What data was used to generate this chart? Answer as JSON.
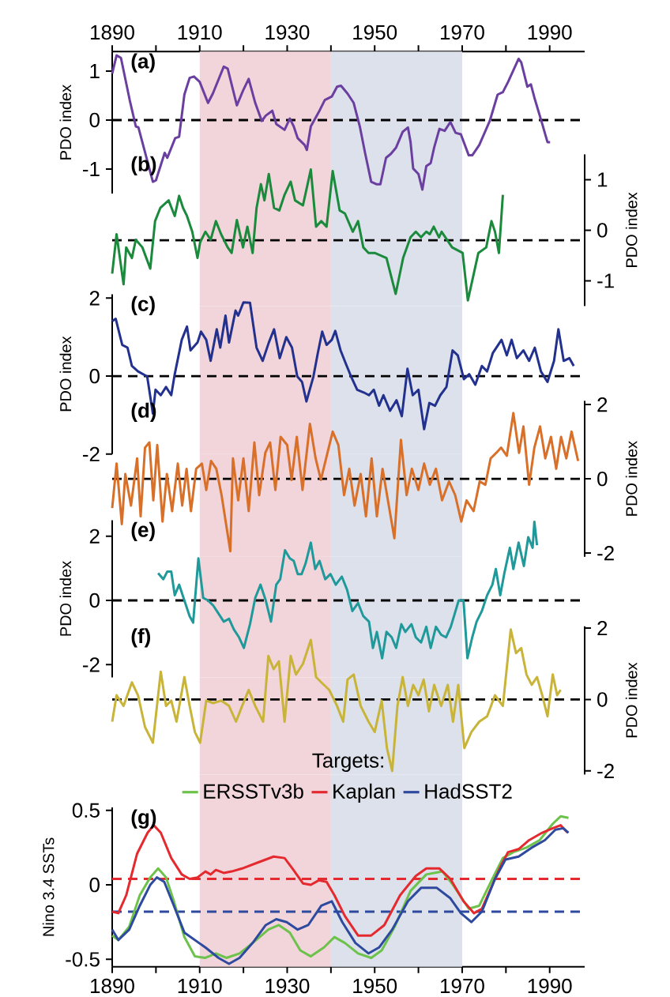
{
  "chart_data": [
    {
      "type": "line",
      "xlim": [
        1890,
        1998
      ],
      "ylim": [
        -1.5,
        1.4
      ],
      "ylabel": "PDO index",
      "annotations": [
        "(a)"
      ],
      "xticks": [
        1890,
        {
          "value": 1900,
          "label": null
        },
        1910,
        {
          "value": 1920,
          "label": null
        },
        1930,
        {
          "value": 1940,
          "label": null
        },
        1950,
        {
          "value": 1960,
          "label": null
        },
        1970,
        {
          "value": 1980,
          "label": null
        },
        1990
      ],
      "yticks": [
        -1,
        0,
        1
      ],
      "ref_lines": [
        {
          "axis": "y",
          "value": 0,
          "line_style": "dashed",
          "color": "#000000"
        }
      ],
      "bands": [
        {
          "axis": "x",
          "from": 1910,
          "to": 1940,
          "color": "#f1d5db"
        },
        {
          "axis": "x",
          "from": 1940,
          "to": 1970,
          "color": "#dde1eb"
        }
      ],
      "series": [
        {
          "color": "#6b3fa0",
          "x": [
            1890,
            1891,
            1892,
            1894,
            1895.4,
            1896,
            1899.3,
            1900,
            1902,
            1902.6,
            1904.4,
            1905.3,
            1906.5,
            1907.7,
            1908.7,
            1910,
            1911.9,
            1913,
            1915.5,
            1916.4,
            1918.5,
            1920,
            1921.2,
            1922.7,
            1924.2,
            1925.1,
            1926.6,
            1927.5,
            1929.4,
            1930.6,
            1931.5,
            1932.4,
            1934,
            1934.5,
            1935.4,
            1937.2,
            1938.6,
            1940.2,
            1941.4,
            1942.3,
            1943.8,
            1945.2,
            1946.6,
            1947.8,
            1949.2,
            1950.4,
            1951.3,
            1952.6,
            1953.7,
            1954.9,
            1956.4,
            1957.6,
            1958.2,
            1958.8,
            1960,
            1960.9,
            1961.8,
            1962.8,
            1963.6,
            1964.8,
            1966,
            1967.3,
            1968.5,
            1969.7,
            1971.5,
            1972.3,
            1973.9,
            1976.3,
            1978.1,
            1979.3,
            1980.5,
            1982.9,
            1983.5,
            1984.9,
            1985.7,
            1986.5,
            1988.3,
            1989.5,
            1990.1
          ],
          "values": [
            0.95,
            1.32,
            1.27,
            0.41,
            -0.13,
            -0.15,
            -1.26,
            -1.23,
            -0.67,
            -0.77,
            -0.37,
            -0.34,
            0.52,
            0.86,
            0.89,
            0.78,
            0.35,
            0.54,
            1.09,
            1.05,
            0.3,
            0.62,
            0.84,
            0.35,
            -0.02,
            0.09,
            0.19,
            -0.08,
            -0.2,
            0.03,
            -0.13,
            -0.37,
            -0.51,
            -0.61,
            -0.13,
            0.16,
            0.41,
            0.48,
            0.68,
            0.7,
            0.54,
            0.35,
            -0.13,
            -0.67,
            -1.26,
            -1.31,
            -1.31,
            -0.77,
            -0.69,
            -0.56,
            -0.24,
            -0.15,
            -0.45,
            -0.99,
            -1.1,
            -1.42,
            -0.94,
            -0.88,
            -0.56,
            -0.18,
            -0.22,
            -0.04,
            -0.26,
            -0.29,
            -0.72,
            -0.72,
            -0.51,
            -0.02,
            0.52,
            0.57,
            0.78,
            1.25,
            1.18,
            0.68,
            0.73,
            0.46,
            -0.08,
            -0.45,
            -0.45
          ]
        }
      ]
    },
    {
      "type": "line",
      "xlim": [
        1890,
        1998
      ],
      "y2lim": [
        -1.5,
        1.5
      ],
      "y2label": "PDO index",
      "annotations": [
        "(b)"
      ],
      "tick_labels": "y",
      "y2ticks": [
        -1,
        0,
        1
      ],
      "ref_lines": [
        {
          "axis": "y2",
          "value": -0.2,
          "line_style": "dashed",
          "color": "#000000"
        }
      ],
      "bands": [
        {
          "axis": "x",
          "from": 1910,
          "to": 1940,
          "color": "#f1d5db"
        },
        {
          "axis": "x",
          "from": 1940,
          "to": 1970,
          "color": "#dde1eb"
        }
      ],
      "series": [
        {
          "color": "#1b8a3c",
          "axis": "y2",
          "x": [
            1890,
            1891,
            1892.6,
            1893.2,
            1894.5,
            1895.4,
            1896.9,
            1898.7,
            1899.8,
            1901,
            1902.9,
            1904.3,
            1905.3,
            1906.2,
            1907.1,
            1908.3,
            1909.5,
            1910.1,
            1911.3,
            1912.5,
            1913.7,
            1914.9,
            1916.4,
            1917.3,
            1918.5,
            1919.9,
            1920.9,
            1922.1,
            1923,
            1924,
            1924.8,
            1925.8,
            1927,
            1928.2,
            1929.4,
            1930.8,
            1931.8,
            1933.6,
            1935.4,
            1936.6,
            1937.8,
            1939,
            1940.4,
            1942,
            1943.2,
            1945,
            1946.2,
            1947.4,
            1948.6,
            1950,
            1952.7,
            1954.8,
            1956.5,
            1958.2,
            1959.4,
            1960.6,
            1961.8,
            1962.6,
            1963.5,
            1964.7,
            1965.3,
            1967.7,
            1970.1,
            1971.3,
            1973.7,
            1975.5,
            1976.7,
            1977.5,
            1978.4,
            1979.3
          ],
          "values": [
            -0.86,
            -0.08,
            -1.07,
            -0.34,
            -0.55,
            -0.19,
            -0.34,
            -0.76,
            0.18,
            0.44,
            0.59,
            0.28,
            0.68,
            0.44,
            0.28,
            -0.03,
            -0.55,
            -0.24,
            -0.03,
            -0.19,
            0.18,
            -0.08,
            -0.34,
            -0.45,
            0.2,
            -0.34,
            0.07,
            -0.45,
            0.44,
            0.91,
            0.59,
            1.11,
            0.44,
            0.39,
            0.7,
            0.96,
            0.59,
            0.49,
            1.2,
            0.07,
            0.18,
            0.07,
            1.17,
            0.39,
            0.33,
            -0.03,
            0.18,
            -0.34,
            -0.45,
            -0.45,
            -0.55,
            -1.26,
            -0.55,
            -0.14,
            -0.03,
            -0.14,
            -0.03,
            -0.08,
            0.07,
            -0.14,
            -0.03,
            -0.34,
            -0.45,
            -1.39,
            -0.45,
            -0.34,
            0.18,
            -0.03,
            -0.45,
            0.7
          ]
        }
      ]
    },
    {
      "type": "line",
      "xlim": [
        1890,
        1998
      ],
      "ylim": [
        -2,
        2.1
      ],
      "ylabel": "PDO index",
      "annotations": [
        "(c)"
      ],
      "tick_labels": "y",
      "yticks": [
        -2,
        0,
        2
      ],
      "ref_lines": [
        {
          "axis": "y",
          "value": 0,
          "line_style": "dashed",
          "color": "#000000"
        }
      ],
      "bands": [
        {
          "axis": "x",
          "from": 1910,
          "to": 1940,
          "color": "#f1d5db"
        },
        {
          "axis": "x",
          "from": 1940,
          "to": 1970,
          "color": "#dde1eb"
        }
      ],
      "series": [
        {
          "color": "#23318e",
          "x": [
            1890,
            1890.8,
            1892.3,
            1893.5,
            1894.5,
            1895.9,
            1898,
            1899.3,
            1899.9,
            1901.1,
            1902.3,
            1903.5,
            1904.3,
            1905.9,
            1907.1,
            1907.9,
            1909.5,
            1910.3,
            1911.5,
            1912.5,
            1913.9,
            1914.7,
            1915.9,
            1916.7,
            1918.2,
            1918.8,
            1920,
            1921.5,
            1923,
            1924.4,
            1925.8,
            1927,
            1928.3,
            1929.8,
            1931.1,
            1932.3,
            1933.4,
            1934.4,
            1936,
            1937,
            1938,
            1939,
            1940.2,
            1941,
            1942.2,
            1943.4,
            1944.6,
            1946,
            1947.5,
            1948.7,
            1949.8,
            1951,
            1952,
            1953.5,
            1955,
            1956.2,
            1957.5,
            1958.7,
            1960,
            1961.3,
            1962.5,
            1963.8,
            1965,
            1966.4,
            1967.8,
            1969,
            1970.4,
            1971.6,
            1973,
            1974.5,
            1975.7,
            1977,
            1979,
            1980.2,
            1981.3,
            1982.5,
            1984,
            1985.3,
            1986.6,
            1988,
            1989.5,
            1991,
            1992,
            1993.2,
            1994.5,
            1995.5
          ],
          "values": [
            1.41,
            1.47,
            0.8,
            0.73,
            0.26,
            0.12,
            -0.01,
            -0.96,
            -0.35,
            -0.49,
            -0.28,
            -0.49,
            0.05,
            0.93,
            1.27,
            0.66,
            0.86,
            1.14,
            0.93,
            0.39,
            1.2,
            0.73,
            1.55,
            0.86,
            1.68,
            1.55,
            1.89,
            1.88,
            0.73,
            0.39,
            0.86,
            1.2,
            0.46,
            1.0,
            0.73,
            -0.01,
            -0.15,
            -0.65,
            -0.01,
            0.59,
            1.14,
            0.8,
            0.93,
            1.16,
            0.66,
            0.32,
            -0.01,
            -0.35,
            -0.42,
            -0.49,
            -0.35,
            -0.76,
            -0.49,
            -0.89,
            -0.62,
            -1.03,
            0.19,
            -0.49,
            -0.35,
            -1.36,
            -0.69,
            -0.76,
            -0.49,
            -0.28,
            0.66,
            0.53,
            -0.08,
            0.05,
            -0.22,
            0.26,
            0.12,
            0.59,
            0.93,
            0.53,
            0.93,
            0.46,
            0.66,
            0.39,
            0.73,
            0.12,
            -0.15,
            0.39,
            1.2,
            0.39,
            0.46,
            0.26
          ]
        }
      ]
    },
    {
      "type": "line",
      "xlim": [
        1890,
        1998
      ],
      "y2lim": [
        -2.1,
        2.1
      ],
      "y2label": "PDO index",
      "annotations": [
        "(d)"
      ],
      "tick_labels": "y",
      "y2ticks": [
        -2,
        0,
        2
      ],
      "ref_lines": [
        {
          "axis": "y2",
          "value": 0,
          "line_style": "dashed",
          "color": "#000000"
        }
      ],
      "bands": [
        {
          "axis": "x",
          "from": 1910,
          "to": 1940,
          "color": "#f1d5db"
        },
        {
          "axis": "x",
          "from": 1940,
          "to": 1970,
          "color": "#dde1eb"
        }
      ],
      "series": [
        {
          "color": "#d8702a",
          "axis": "y2",
          "x": [
            1890,
            1891,
            1892.2,
            1893,
            1894.3,
            1895.7,
            1896.5,
            1897.5,
            1898.5,
            1899.4,
            1900.3,
            1901.5,
            1902.5,
            1903.7,
            1905,
            1906,
            1907,
            1908,
            1909.2,
            1910.5,
            1911.5,
            1912.6,
            1913.8,
            1915,
            1917,
            1917.6,
            1918.8,
            1920,
            1921.2,
            1922.5,
            1923.6,
            1925,
            1926.1,
            1927.3,
            1928.5,
            1930,
            1931,
            1932.2,
            1933.5,
            1935.2,
            1936.5,
            1937.7,
            1938.9,
            1940.4,
            1941.7,
            1943,
            1944.2,
            1945.4,
            1946.8,
            1948,
            1949.3,
            1950.5,
            1951.8,
            1954.5,
            1956,
            1957.3,
            1958.5,
            1960,
            1961.3,
            1962.6,
            1964,
            1965.4,
            1967,
            1968.4,
            1969.8,
            1971,
            1972.6,
            1974,
            1975.3,
            1976.5,
            1977.8,
            1978.9,
            1980.2,
            1981.7,
            1983,
            1984,
            1985.3,
            1986.5,
            1987.8,
            1989,
            1990.3,
            1991.5,
            1992.6,
            1993.8,
            1995,
            1996.5
          ],
          "values": [
            -0.79,
            0.41,
            -1.22,
            0.13,
            -0.72,
            0.55,
            -1.01,
            0.84,
            0.98,
            -0.58,
            0.91,
            -1.15,
            0.13,
            -0.87,
            0.41,
            -0.72,
            0.27,
            -0.87,
            0.27,
            0.41,
            -0.3,
            0.48,
            0.27,
            -0.44,
            -1.95,
            0.55,
            -0.58,
            0.55,
            -0.87,
            0.98,
            -0.44,
            0.7,
            0.98,
            -0.3,
            1.13,
            0.91,
            -0.03,
            1.13,
            -0.3,
            1.48,
            0.55,
            -0.03,
            0.55,
            1.27,
            0.91,
            -0.44,
            0.27,
            -0.72,
            0.13,
            -1.01,
            0.55,
            -1.01,
            0.27,
            -1.6,
            1.05,
            -0.44,
            0.27,
            -0.3,
            0.41,
            -0.16,
            0.27,
            -0.58,
            -0.07,
            -0.44,
            -1.15,
            -0.58,
            -0.87,
            -0.07,
            -0.16,
            0.55,
            0.7,
            0.84,
            0.62,
            1.77,
            0.7,
            1.41,
            -0.16,
            0.84,
            1.41,
            0.55,
            1.13,
            0.27,
            1.13,
            0.55,
            1.27,
            0.48
          ]
        }
      ]
    },
    {
      "type": "line",
      "xlim": [
        1890,
        1998
      ],
      "ylim": [
        -2.4,
        2.5
      ],
      "ylabel": "PDO index",
      "annotations": [
        "(e)"
      ],
      "tick_labels": "y",
      "yticks": [
        -2,
        0,
        2
      ],
      "ref_lines": [
        {
          "axis": "y",
          "value": 0,
          "line_style": "dashed",
          "color": "#000000"
        }
      ],
      "bands": [
        {
          "axis": "x",
          "from": 1910,
          "to": 1940,
          "color": "#f1d5db"
        },
        {
          "axis": "x",
          "from": 1940,
          "to": 1970,
          "color": "#dde1eb"
        }
      ],
      "series": [
        {
          "color": "#20999a",
          "x": [
            1900.5,
            1901.7,
            1902.6,
            1903.5,
            1904.3,
            1905.3,
            1906.5,
            1907.7,
            1908.5,
            1909.7,
            1910.8,
            1911.9,
            1913.1,
            1914.3,
            1915.5,
            1916.7,
            1917.8,
            1919,
            1920.1,
            1921.5,
            1922.7,
            1923.9,
            1925.1,
            1926.3,
            1927.5,
            1928.4,
            1929.5,
            1930.6,
            1931.5,
            1932.4,
            1933.3,
            1934.2,
            1935.4,
            1936.4,
            1937.4,
            1938.7,
            1939.9,
            1941.1,
            1942.5,
            1943.7,
            1944.9,
            1946.2,
            1947.4,
            1948.7,
            1949.6,
            1950.5,
            1951.7,
            1952.7,
            1953.9,
            1954.9,
            1956.1,
            1957,
            1958.4,
            1959.4,
            1960.6,
            1961.8,
            1962.8,
            1964,
            1965.2,
            1966.3,
            1967.4,
            1969.2,
            1970.3,
            1971.2,
            1972.3,
            1973.3,
            1974.5,
            1975.7,
            1976.9,
            1977.7,
            1978.7,
            1979.6,
            1980.9,
            1981.7,
            1982.9,
            1984.1,
            1985.1,
            1986.1,
            1986.5,
            1987.1
          ],
          "values": [
            0.85,
            0.66,
            0.9,
            0.9,
            0.16,
            0.49,
            0,
            -0.49,
            -0.69,
            1.31,
            0.08,
            0,
            -0.16,
            -0.41,
            -0.66,
            -0.57,
            -0.9,
            -1.15,
            -1.48,
            -0.74,
            0.08,
            0.49,
            0,
            -0.66,
            0.49,
            0.66,
            1.56,
            1.31,
            1.23,
            0.82,
            0.82,
            1.15,
            1.8,
            0.98,
            1.23,
            0.66,
            0.82,
            0.49,
            0.74,
            0.33,
            -0.33,
            -0.08,
            -0.49,
            -0.66,
            -1.48,
            -0.98,
            -1.8,
            -0.98,
            -1.15,
            -1.48,
            -0.74,
            -0.98,
            -0.74,
            -1.15,
            -1.31,
            -0.82,
            -1.48,
            -0.82,
            -1.07,
            -1.15,
            -0.82,
            0,
            0,
            -1.8,
            -1.15,
            -0.66,
            -0.33,
            0.16,
            0.49,
            0.98,
            0.16,
            0.82,
            1.64,
            0.98,
            1.8,
            1.07,
            1.97,
            1.64,
            2.45,
            1.72
          ]
        }
      ]
    },
    {
      "type": "line",
      "xlim": [
        1890,
        1998
      ],
      "y2lim": [
        -2.1,
        2.05
      ],
      "y2label": "PDO index",
      "annotations": [
        "(f)"
      ],
      "tick_labels": "y",
      "y2ticks": [
        -2,
        0,
        2
      ],
      "ref_lines": [
        {
          "axis": "y2",
          "value": 0,
          "line_style": "dashed",
          "color": "#000000"
        }
      ],
      "bands": [
        {
          "axis": "x",
          "from": 1910,
          "to": 1940,
          "color": "#f1d5db"
        },
        {
          "axis": "x",
          "from": 1940,
          "to": 1970,
          "color": "#dde1eb"
        }
      ],
      "series": [
        {
          "color": "#c9b43a",
          "axis": "y2",
          "x": [
            1890,
            1891,
            1892.6,
            1894.5,
            1895.9,
            1897.5,
            1899.3,
            1901.1,
            1902.3,
            1903.5,
            1904.7,
            1906.5,
            1907.7,
            1908.9,
            1910.1,
            1911.5,
            1913.1,
            1914.9,
            1916.7,
            1918.3,
            1919.7,
            1921.2,
            1922.7,
            1924.5,
            1925.7,
            1926.9,
            1928.1,
            1929.4,
            1930.8,
            1932,
            1933.6,
            1935.4,
            1936.6,
            1937.8,
            1939.6,
            1941.4,
            1942.8,
            1943.8,
            1945.2,
            1946.8,
            1948.6,
            1950,
            1951.6,
            1952.8,
            1954,
            1955.2,
            1956.4,
            1957.6,
            1958.8,
            1960,
            1961.2,
            1962.4,
            1963.6,
            1965.2,
            1966.7,
            1967.9,
            1969.1,
            1970.5,
            1972.1,
            1973.9,
            1975.7,
            1977.5,
            1979.3,
            1981.1,
            1982.3,
            1983.5,
            1984.7,
            1985.9,
            1987.1,
            1988.3,
            1989.5,
            1990.7,
            1991.7,
            1992.5
          ],
          "values": [
            -0.62,
            0.12,
            -0.18,
            0.48,
            0.12,
            -0.77,
            -1.21,
            0.78,
            -0.18,
            -0.03,
            -0.62,
            0.63,
            -0.18,
            -0.91,
            -1.21,
            -0.03,
            -0.1,
            -0.03,
            -0.18,
            -0.62,
            -0.18,
            0.27,
            -0.18,
            -0.62,
            1.22,
            0.85,
            1.07,
            -0.62,
            1.22,
            0.7,
            1.0,
            1.67,
            0.63,
            0.48,
            0.27,
            -0.18,
            -0.62,
            0.56,
            0.7,
            -0.18,
            -0.62,
            -0.91,
            -0.03,
            -1.36,
            -2.0,
            -0.18,
            0.63,
            -0.18,
            0.41,
            0.12,
            0.56,
            -0.33,
            0.41,
            -0.18,
            0.41,
            -0.62,
            0.41,
            -1.36,
            -0.91,
            -0.62,
            -0.47,
            0.12,
            -0.18,
            1.96,
            1.3,
            1.44,
            0.7,
            0.41,
            0.63,
            0.12,
            -0.47,
            0.7,
            0.12,
            0.27
          ]
        }
      ]
    },
    {
      "type": "line",
      "xlim": [
        1890,
        1998
      ],
      "ylim": [
        -0.55,
        0.52
      ],
      "ylabel": "Nino 3.4 SSTs",
      "annotations": [
        "(g)"
      ],
      "xticks": [
        1890,
        {
          "value": 1900,
          "label": null
        },
        1910,
        {
          "value": 1920,
          "label": null
        },
        1930,
        {
          "value": 1940,
          "label": null
        },
        1950,
        {
          "value": 1960,
          "label": null
        },
        1970,
        {
          "value": 1980,
          "label": null
        },
        1990
      ],
      "yticks": [
        -0.5,
        0,
        0.5
      ],
      "legend": "top",
      "legend_title": "Targets:",
      "ref_lines": [
        {
          "axis": "y",
          "value": 0.04,
          "line_style": "dashed",
          "color": "#e52a2f"
        },
        {
          "axis": "y",
          "value": -0.18,
          "line_style": "dashed",
          "color": "#2e4a9e"
        }
      ],
      "bands": [
        {
          "axis": "x",
          "from": 1910,
          "to": 1940,
          "color": "#f1d5db"
        },
        {
          "axis": "x",
          "from": 1940,
          "to": 1970,
          "color": "#dde1eb"
        }
      ],
      "series": [
        {
          "name": "ERSSTv3b",
          "color": "#6cc24a",
          "x": [
            1890,
            1891.4,
            1893.9,
            1896.3,
            1898.7,
            1900.5,
            1902.3,
            1904.1,
            1906.5,
            1908.9,
            1911.3,
            1913.7,
            1916.1,
            1919.1,
            1922.1,
            1925.7,
            1928.1,
            1930.6,
            1933,
            1935.4,
            1938.4,
            1940.8,
            1943.2,
            1946.2,
            1949.2,
            1951.6,
            1954.6,
            1958.2,
            1961.8,
            1965.5,
            1967.9,
            1971.5,
            1973.9,
            1976.9,
            1979.3,
            1981.7,
            1984.7,
            1987.7,
            1990.7,
            1992.5,
            1994.3
          ],
          "values": [
            -0.34,
            -0.37,
            -0.28,
            -0.07,
            0.05,
            0.11,
            0.05,
            -0.11,
            -0.35,
            -0.48,
            -0.49,
            -0.46,
            -0.49,
            -0.46,
            -0.39,
            -0.3,
            -0.27,
            -0.32,
            -0.44,
            -0.48,
            -0.42,
            -0.35,
            -0.39,
            -0.46,
            -0.49,
            -0.44,
            -0.28,
            -0.04,
            0.07,
            0.09,
            0,
            -0.16,
            -0.14,
            0.04,
            0.18,
            0.22,
            0.25,
            0.3,
            0.41,
            0.46,
            0.45
          ]
        },
        {
          "name": "Kaplan",
          "color": "#e52a2f",
          "x": [
            1890,
            1891.4,
            1893.2,
            1895.7,
            1898.1,
            1899.5,
            1901.1,
            1903.5,
            1905.9,
            1907.7,
            1909.5,
            1911.3,
            1912.5,
            1913.7,
            1915.5,
            1917.3,
            1919.7,
            1923.3,
            1926.9,
            1929.4,
            1931.2,
            1933.6,
            1935.4,
            1937.2,
            1939,
            1940.8,
            1943.2,
            1946.2,
            1949.2,
            1952.2,
            1955.8,
            1959.4,
            1961.8,
            1964.8,
            1967.3,
            1970.3,
            1972.7,
            1974.5,
            1976.9,
            1978.7,
            1980.5,
            1982.9,
            1985.3,
            1988.3,
            1990.7,
            1992.5,
            1994.1
          ],
          "values": [
            -0.18,
            -0.19,
            -0.07,
            0.21,
            0.35,
            0.4,
            0.35,
            0.18,
            0.07,
            0.04,
            0.05,
            0.09,
            0.07,
            0.1,
            0.08,
            0.09,
            0.11,
            0.15,
            0.19,
            0.18,
            0.11,
            0.01,
            0,
            0.03,
            0.02,
            -0.07,
            -0.21,
            -0.34,
            -0.34,
            -0.27,
            -0.07,
            0.06,
            0.11,
            0.11,
            0.04,
            -0.11,
            -0.19,
            -0.16,
            0,
            0.12,
            0.22,
            0.24,
            0.3,
            0.35,
            0.38,
            0.4,
            0.35
          ]
        },
        {
          "name": "HadSST2",
          "color": "#2e4a9e",
          "x": [
            1890,
            1891.4,
            1893.9,
            1896.3,
            1898.7,
            1900.2,
            1901.9,
            1904.1,
            1906.5,
            1908.9,
            1911.3,
            1914.3,
            1916.7,
            1919.1,
            1922.1,
            1925.1,
            1927.5,
            1929.9,
            1932.4,
            1934.8,
            1937.8,
            1940.2,
            1942.6,
            1945.6,
            1948.6,
            1951,
            1954,
            1957.6,
            1960.6,
            1964.2,
            1967.3,
            1969.7,
            1972.1,
            1974.5,
            1977.5,
            1979.9,
            1982.9,
            1985.9,
            1988.9,
            1991.3,
            1993.1,
            1994.3
          ],
          "values": [
            -0.3,
            -0.37,
            -0.3,
            -0.14,
            0,
            0.05,
            0.02,
            -0.14,
            -0.32,
            -0.37,
            -0.42,
            -0.49,
            -0.53,
            -0.49,
            -0.39,
            -0.27,
            -0.23,
            -0.25,
            -0.3,
            -0.27,
            -0.14,
            -0.11,
            -0.25,
            -0.39,
            -0.46,
            -0.42,
            -0.3,
            -0.11,
            -0.02,
            -0.02,
            -0.09,
            -0.19,
            -0.25,
            -0.18,
            0.04,
            0.17,
            0.19,
            0.25,
            0.3,
            0.37,
            0.38,
            0.35
          ]
        }
      ]
    }
  ]
}
